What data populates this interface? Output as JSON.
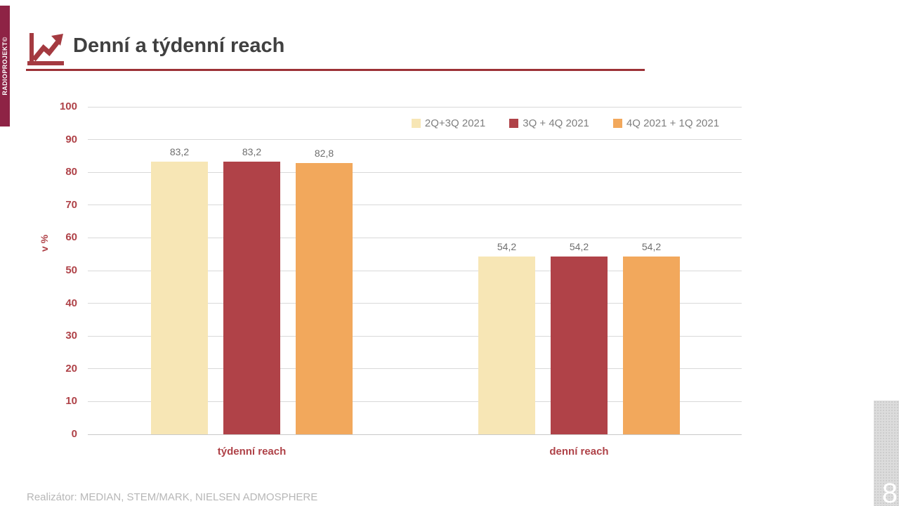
{
  "sidebar": {
    "brand": "RADIOPROJEKT©"
  },
  "header": {
    "title": "Denní a týdenní reach",
    "icon": "trend-chart-icon"
  },
  "footer": {
    "realizator": "Realizátor: MEDIAN, STEM/MARK, NIELSEN ADMOSPHERE",
    "page_number": "8"
  },
  "colors": {
    "accent_red": "#A43A40",
    "underline_red": "#9C3136",
    "sidebar_red": "#8E2345",
    "axis_text_red": "#AF4248",
    "title_gray": "#404040",
    "value_label_gray": "#6E6E6E",
    "legend_text_gray": "#7F7F7F",
    "gridline_gray": "#D9D9D9",
    "footer_gray": "#B7B7B7",
    "page_tab_gray": "#DCDCDC"
  },
  "chart_data": {
    "type": "bar",
    "title": "Denní a týdenní reach",
    "xlabel": "",
    "ylabel": "v %",
    "ylim": [
      0,
      100
    ],
    "ytick_step": 10,
    "grid": true,
    "legend_position": "top",
    "categories": [
      "týdenní reach",
      "denní reach"
    ],
    "series": [
      {
        "name": "2Q+3Q 2021",
        "color": "#F7E6B5",
        "values": [
          83.2,
          54.2
        ],
        "value_labels": [
          "83,2",
          "54,2"
        ]
      },
      {
        "name": "3Q + 4Q 2021",
        "color": "#B04248",
        "values": [
          83.2,
          54.2
        ],
        "value_labels": [
          "83,2",
          "54,2"
        ]
      },
      {
        "name": "4Q 2021 + 1Q 2021",
        "color": "#F2A85C",
        "values": [
          82.8,
          54.2
        ],
        "value_labels": [
          "82,8",
          "54,2"
        ]
      }
    ]
  }
}
